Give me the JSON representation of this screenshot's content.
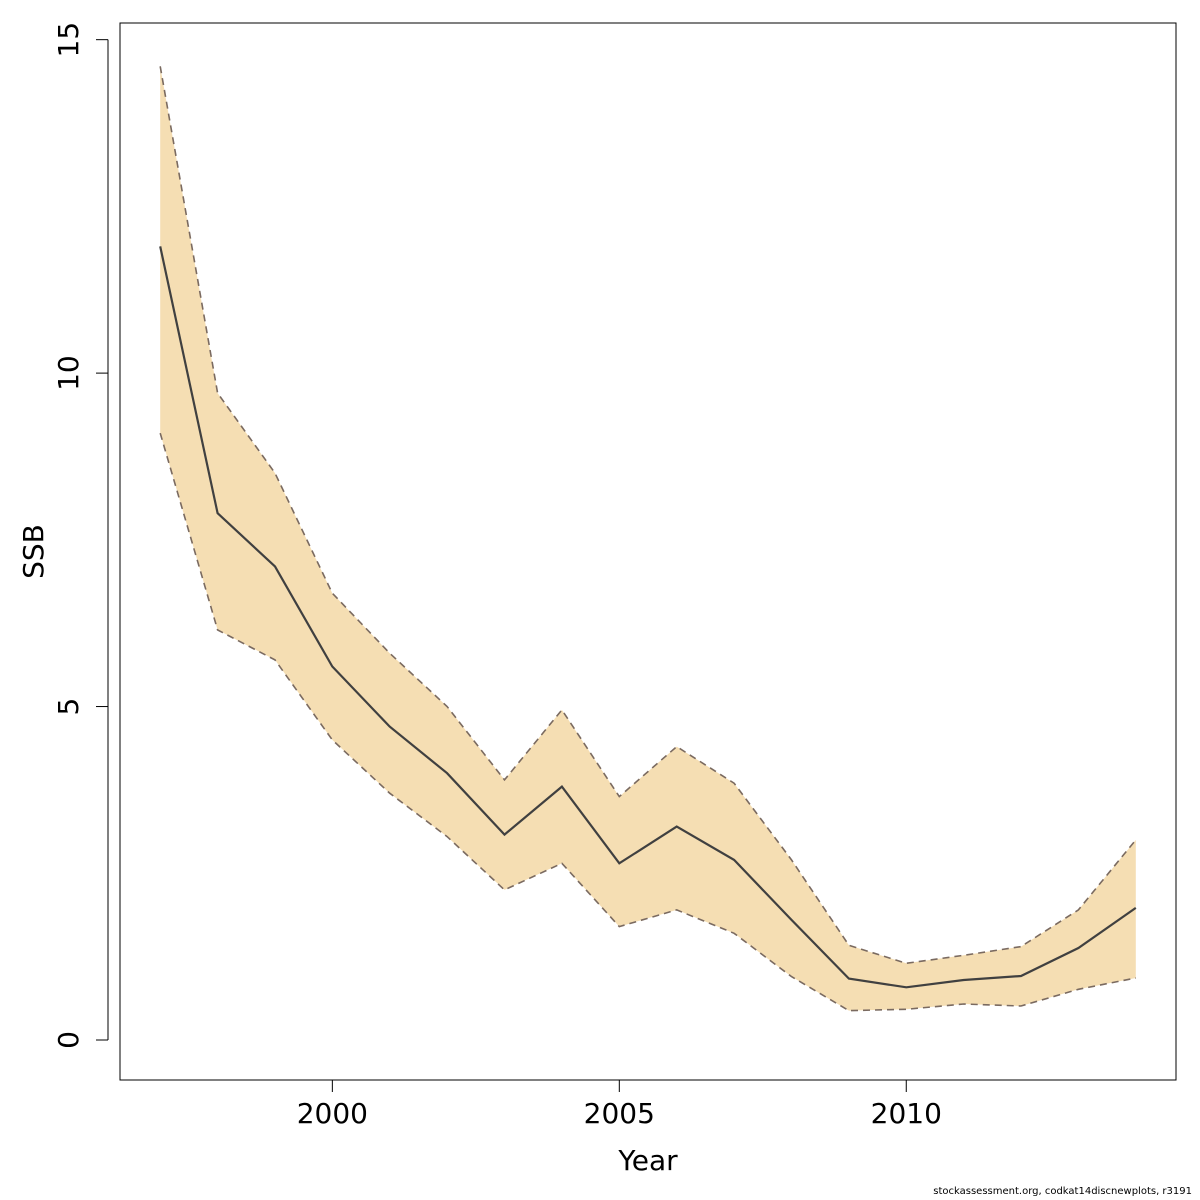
{
  "chart_data": {
    "type": "area",
    "title": "",
    "xlabel": "Year",
    "ylabel": "SSB",
    "xlim": [
      1996.3,
      2014.7
    ],
    "ylim": [
      -0.6,
      15.25
    ],
    "x_ticks": [
      2000,
      2005,
      2010
    ],
    "y_ticks": [
      0,
      5,
      10,
      15
    ],
    "grid": false,
    "colors": {
      "band": "#f5deb3",
      "line": "#404040",
      "bounds": "#7a6a60"
    },
    "x": [
      1997,
      1998,
      1999,
      2000,
      2001,
      2002,
      2003,
      2004,
      2005,
      2006,
      2007,
      2008,
      2009,
      2010,
      2011,
      2012,
      2013,
      2014
    ],
    "series": [
      {
        "role": "estimate",
        "values": [
          11.9,
          7.9,
          7.1,
          5.6,
          4.7,
          4.0,
          3.08,
          3.8,
          2.65,
          3.2,
          2.7,
          1.8,
          0.92,
          0.79,
          0.9,
          0.96,
          1.38,
          1.98
        ]
      },
      {
        "role": "lower",
        "values": [
          9.1,
          6.15,
          5.7,
          4.5,
          3.7,
          3.05,
          2.25,
          2.65,
          1.7,
          1.95,
          1.6,
          0.95,
          0.44,
          0.46,
          0.54,
          0.51,
          0.76,
          0.93
        ]
      },
      {
        "role": "upper",
        "values": [
          14.6,
          9.7,
          8.5,
          6.7,
          5.8,
          5.0,
          3.9,
          4.95,
          3.65,
          4.4,
          3.85,
          2.7,
          1.42,
          1.15,
          1.27,
          1.4,
          1.95,
          3.0
        ]
      }
    ]
  },
  "footer": {
    "text": "stockassessment.org, codkat14discnewplots, r3191"
  }
}
